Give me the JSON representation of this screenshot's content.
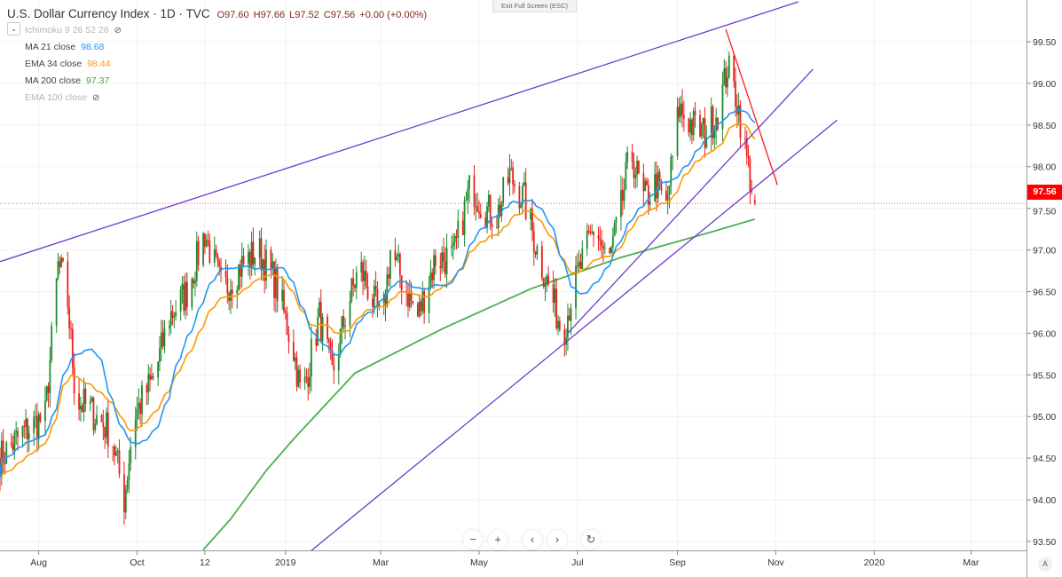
{
  "header": {
    "symbol_title": "U.S. Dollar Currency Index · 1D · TVC",
    "open": "O97.60",
    "high": "H97.66",
    "low": "L97.52",
    "close": "C97.56",
    "change": "+0.00 (+0.00%)"
  },
  "indicators": [
    {
      "label": "Ichimoku 9 26 52 26",
      "value": "",
      "hidden": true,
      "icon": "eye-hidden-icon"
    },
    {
      "label": "MA  21 close",
      "value": "98.68",
      "color": "#2196f3"
    },
    {
      "label": "EMA 34 close",
      "value": "98.44",
      "color": "#ff9800"
    },
    {
      "label": "MA  200 close",
      "value": "97.37",
      "color": "#4caf50"
    },
    {
      "label": "EMA 100 close",
      "value": "",
      "hidden": true,
      "icon": "eye-hidden-icon"
    }
  ],
  "toolbar": {
    "exit_fullscreen": "Exit Full Screen (ESC)",
    "zoom_out": "−",
    "zoom_in": "+",
    "scroll_left": "‹",
    "scroll_right": "›",
    "reset": "↻",
    "auto_scale": "A"
  },
  "last_price": "97.56",
  "colors": {
    "up": "#1e8a2e",
    "down": "#e8211c",
    "trend": "#6c3bcc",
    "red_trend": "#ff1a1a",
    "last": "#ff0000"
  },
  "chart_data": {
    "type": "candlestick",
    "title": "U.S. Dollar Currency Index · 1D · TVC",
    "x_units": "calendar days since 2018-07-08",
    "ylim": [
      93.3,
      100.0
    ],
    "xlim": [
      0,
      636
    ],
    "y_ticks": [
      "93.50",
      "94.00",
      "94.50",
      "95.00",
      "95.50",
      "96.00",
      "96.50",
      "97.00",
      "97.50",
      "98.00",
      "98.50",
      "99.00",
      "99.50"
    ],
    "x_ticks": [
      {
        "label": "Aug",
        "day": 24
      },
      {
        "label": "Oct",
        "day": 85
      },
      {
        "label": "12",
        "day": 127
      },
      {
        "label": "2019",
        "day": 177
      },
      {
        "label": "Mar",
        "day": 236
      },
      {
        "label": "May",
        "day": 297
      },
      {
        "label": "Jul",
        "day": 358
      },
      {
        "label": "Sep",
        "day": 420
      },
      {
        "label": "Nov",
        "day": 481
      },
      {
        "label": "2020",
        "day": 542
      },
      {
        "label": "Mar",
        "day": 602
      }
    ],
    "close_keypoints": [
      [
        0,
        94.5
      ],
      [
        14,
        94.8
      ],
      [
        28,
        95.0
      ],
      [
        36,
        96.8
      ],
      [
        41,
        96.6
      ],
      [
        47,
        95.2
      ],
      [
        55,
        95.1
      ],
      [
        69,
        94.8
      ],
      [
        77,
        94.0
      ],
      [
        83,
        95.0
      ],
      [
        96,
        95.5
      ],
      [
        105,
        96.2
      ],
      [
        116,
        96.5
      ],
      [
        127,
        97.2
      ],
      [
        138,
        96.5
      ],
      [
        149,
        96.8
      ],
      [
        160,
        97.0
      ],
      [
        171,
        96.6
      ],
      [
        182,
        95.8
      ],
      [
        187,
        95.2
      ],
      [
        198,
        96.2
      ],
      [
        206,
        95.5
      ],
      [
        215,
        96.3
      ],
      [
        223,
        96.8
      ],
      [
        231,
        96.4
      ],
      [
        237,
        96.1
      ],
      [
        242,
        97.0
      ],
      [
        250,
        96.6
      ],
      [
        259,
        96.2
      ],
      [
        270,
        96.9
      ],
      [
        281,
        96.9
      ],
      [
        292,
        97.8
      ],
      [
        300,
        97.5
      ],
      [
        308,
        97.4
      ],
      [
        316,
        97.9
      ],
      [
        325,
        97.6
      ],
      [
        333,
        97.0
      ],
      [
        341,
        96.5
      ],
      [
        349,
        96.0
      ],
      [
        355,
        96.5
      ],
      [
        360,
        96.8
      ],
      [
        369,
        97.3
      ],
      [
        377,
        96.8
      ],
      [
        385,
        97.5
      ],
      [
        391,
        98.2
      ],
      [
        399,
        97.6
      ],
      [
        407,
        97.8
      ],
      [
        413,
        97.5
      ],
      [
        421,
        98.7
      ],
      [
        429,
        98.5
      ],
      [
        437,
        98.4
      ],
      [
        446,
        98.7
      ],
      [
        451,
        99.2
      ],
      [
        457,
        98.8
      ],
      [
        462,
        98.2
      ],
      [
        468,
        97.56
      ]
    ],
    "ma200": [
      [
        126,
        93.4
      ],
      [
        143,
        93.77
      ],
      [
        165,
        94.35
      ],
      [
        182,
        94.73
      ],
      [
        220,
        95.52
      ],
      [
        275,
        96.06
      ],
      [
        330,
        96.54
      ],
      [
        385,
        96.91
      ],
      [
        440,
        97.21
      ],
      [
        468,
        97.37
      ]
    ],
    "series": [
      {
        "name": "MA 21 close",
        "last": 98.68
      },
      {
        "name": "EMA 34 close",
        "last": 98.44
      },
      {
        "name": "MA 200 close",
        "last": 97.37
      }
    ],
    "trendlines": [
      {
        "name": "upper-channel-line",
        "from": [
          0,
          96.86
        ],
        "to": [
          495,
          99.98
        ],
        "color": "trend"
      },
      {
        "name": "support-line-steep",
        "from": [
          352,
          96.0
        ],
        "to": [
          504,
          99.17
        ],
        "color": "trend"
      },
      {
        "name": "support-line-long",
        "from": [
          193,
          93.39
        ],
        "to": [
          519,
          98.56
        ],
        "color": "trend"
      },
      {
        "name": "downtrend-line",
        "from": [
          450,
          99.65
        ],
        "to": [
          482,
          97.78
        ],
        "color": "red_trend"
      }
    ]
  }
}
